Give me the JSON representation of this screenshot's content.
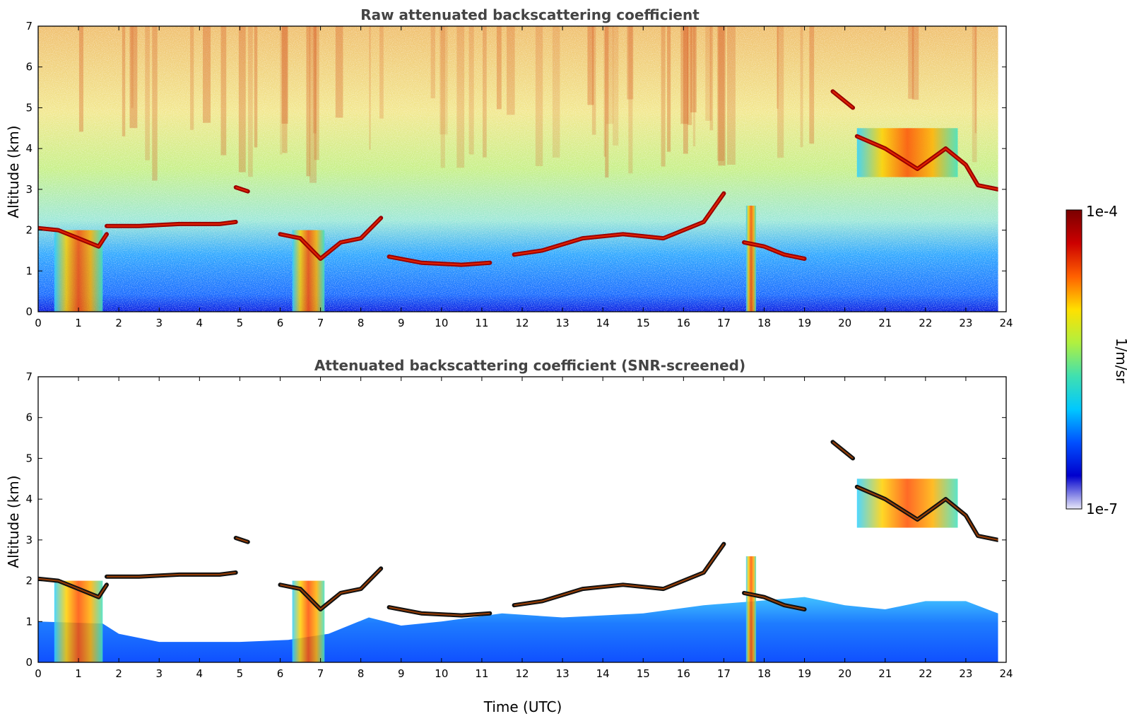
{
  "chart_data": [
    {
      "type": "heatmap",
      "title": "Raw attenuated backscattering coefficient",
      "xlabel": "",
      "ylabel": "Altitude (km)",
      "xlim": [
        0,
        24
      ],
      "ylim": [
        0,
        7
      ],
      "x_ticks": [
        "0",
        "1",
        "2",
        "3",
        "4",
        "5",
        "6",
        "7",
        "8",
        "9",
        "10",
        "11",
        "12",
        "13",
        "14",
        "15",
        "16",
        "17",
        "18",
        "19",
        "20",
        "21",
        "22",
        "23",
        "24"
      ],
      "y_ticks": [
        "0",
        "1",
        "2",
        "3",
        "4",
        "5",
        "6",
        "7"
      ],
      "data_end_time": 23.8,
      "screened": false,
      "cloud_layers": [
        {
          "t": [
            0.0,
            0.5,
            1.0,
            1.5,
            1.7
          ],
          "alt": [
            2.05,
            2.0,
            1.8,
            1.6,
            1.9
          ]
        },
        {
          "t": [
            1.7,
            2.5,
            3.5,
            4.5,
            4.9
          ],
          "alt": [
            2.1,
            2.1,
            2.15,
            2.15,
            2.2
          ]
        },
        {
          "t": [
            4.9,
            5.2
          ],
          "alt": [
            3.05,
            2.95
          ]
        },
        {
          "t": [
            6.0,
            6.5,
            7.0,
            7.5,
            8.0,
            8.5
          ],
          "alt": [
            1.9,
            1.8,
            1.3,
            1.7,
            1.8,
            2.3
          ]
        },
        {
          "t": [
            8.7,
            9.5,
            10.5,
            11.2
          ],
          "alt": [
            1.35,
            1.2,
            1.15,
            1.2
          ]
        },
        {
          "t": [
            11.8,
            12.5,
            13.5,
            14.5,
            15.5,
            16.5,
            17.0
          ],
          "alt": [
            1.4,
            1.5,
            1.8,
            1.9,
            1.8,
            2.2,
            2.9
          ]
        },
        {
          "t": [
            17.5,
            18.0,
            18.5,
            19.0
          ],
          "alt": [
            1.7,
            1.6,
            1.4,
            1.3
          ]
        },
        {
          "t": [
            19.7,
            20.2
          ],
          "alt": [
            5.4,
            5.0
          ]
        },
        {
          "t": [
            20.3,
            21.0,
            21.8,
            22.5,
            23.0,
            23.3,
            23.8
          ],
          "alt": [
            4.3,
            4.0,
            3.5,
            4.0,
            3.6,
            3.1,
            3.0
          ]
        }
      ],
      "cloud_patches": [
        {
          "t0": 0.4,
          "t1": 1.6,
          "alt0": 0.0,
          "alt1": 2.0
        },
        {
          "t0": 6.3,
          "t1": 7.1,
          "alt0": 0.0,
          "alt1": 2.0
        },
        {
          "t0": 17.55,
          "t1": 17.8,
          "alt0": 0.0,
          "alt1": 2.6
        },
        {
          "t0": 20.3,
          "t1": 22.8,
          "alt0": 3.3,
          "alt1": 4.5
        }
      ]
    },
    {
      "type": "heatmap",
      "title": "Attenuated backscattering coefficient (SNR-screened)",
      "xlabel": "Time (UTC)",
      "ylabel": "Altitude (km)",
      "xlim": [
        0,
        24
      ],
      "ylim": [
        0,
        7
      ],
      "x_ticks": [
        "0",
        "1",
        "2",
        "3",
        "4",
        "5",
        "6",
        "7",
        "8",
        "9",
        "10",
        "11",
        "12",
        "13",
        "14",
        "15",
        "16",
        "17",
        "18",
        "19",
        "20",
        "21",
        "22",
        "23",
        "24"
      ],
      "y_ticks": [
        "0",
        "1",
        "2",
        "3",
        "4",
        "5",
        "6",
        "7"
      ],
      "data_end_time": 23.8,
      "screened": true
    }
  ],
  "colorbar": {
    "label": "1/m/sr",
    "max_label": "1e-4",
    "min_label": "1e-7",
    "colormap": "jet",
    "colors": [
      "#e8e8f8",
      "#0000cd",
      "#0050ff",
      "#00c8ff",
      "#40e0b0",
      "#b0f040",
      "#ffe000",
      "#ff6000",
      "#cc0000",
      "#7a0000"
    ]
  }
}
